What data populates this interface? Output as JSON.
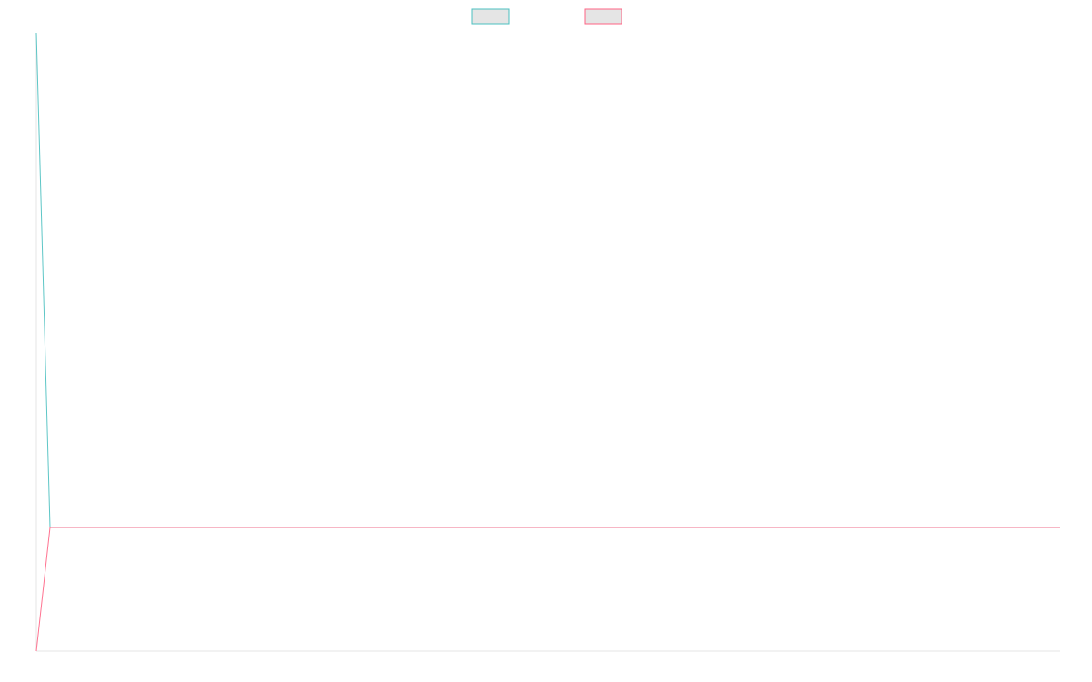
{
  "chart_data": {
    "type": "line",
    "title": "",
    "xlabel": "",
    "ylabel": "",
    "x": [
      0,
      1,
      2,
      3,
      4,
      5,
      6,
      7,
      8,
      9,
      10,
      11,
      12,
      13,
      14,
      15,
      16,
      17,
      18,
      19,
      20,
      21,
      22,
      23,
      24,
      25,
      26,
      27,
      28,
      29,
      30,
      31,
      32,
      33,
      34,
      35,
      36,
      37,
      38,
      39,
      40,
      41,
      42,
      43,
      44,
      45,
      46,
      47,
      48,
      49,
      50,
      51,
      52,
      53,
      54,
      55,
      56,
      57,
      58,
      59,
      60,
      61,
      62,
      63,
      64,
      65,
      66,
      67,
      68,
      69,
      70,
      71,
      72,
      73,
      74,
      75
    ],
    "xlim": [
      0,
      75
    ],
    "ylim": [
      -1,
      4
    ],
    "grid": false,
    "legend": "top-center",
    "series": [
      {
        "name": "",
        "color": "#4bc0c0",
        "values": [
          4,
          0,
          0,
          0,
          0,
          0,
          0,
          0,
          0,
          0,
          0,
          0,
          0,
          0,
          0,
          0,
          0,
          0,
          0,
          0,
          0,
          0,
          0,
          0,
          0,
          0,
          0,
          0,
          0,
          0,
          0,
          0,
          0,
          0,
          0,
          0,
          0,
          0,
          0,
          0,
          0,
          0,
          0,
          0,
          0,
          0,
          0,
          0,
          0,
          0,
          0,
          0,
          0,
          0,
          0,
          0,
          0,
          0,
          0,
          0,
          0,
          0,
          0,
          0,
          0,
          0,
          0,
          0,
          0,
          0,
          0,
          0,
          0,
          0,
          0,
          0
        ]
      },
      {
        "name": "",
        "color": "#ff6384",
        "values": [
          -1,
          0,
          0,
          0,
          0,
          0,
          0,
          0,
          0,
          0,
          0,
          0,
          0,
          0,
          0,
          0,
          0,
          0,
          0,
          0,
          0,
          0,
          0,
          0,
          0,
          0,
          0,
          0,
          0,
          0,
          0,
          0,
          0,
          0,
          0,
          0,
          0,
          0,
          0,
          0,
          0,
          0,
          0,
          0,
          0,
          0,
          0,
          0,
          0,
          0,
          0,
          0,
          0,
          0,
          0,
          0,
          0,
          0,
          0,
          0,
          0,
          0,
          0,
          0,
          0,
          0,
          0,
          0,
          0,
          0,
          0,
          0,
          0,
          0,
          0,
          0
        ]
      }
    ]
  }
}
